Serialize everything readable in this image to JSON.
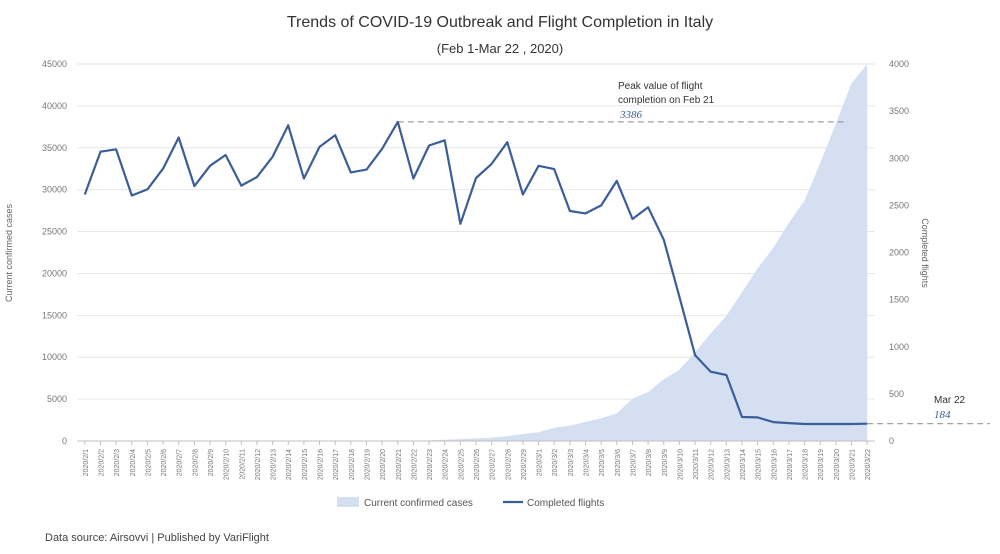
{
  "chart_data": {
    "type": "area+line",
    "title": "Trends of COVID-19 Outbreak and Flight Completion in Italy",
    "subtitle": "(Feb 1-Mar 22 , 2020)",
    "ylabel_left": "Current confirmed cases",
    "ylabel_right": "Completed flights",
    "ylim_left": [
      0,
      45000
    ],
    "ylim_right": [
      0,
      4000
    ],
    "yticks_left": [
      "0",
      "5000",
      "10000",
      "15000",
      "20000",
      "25000",
      "30000",
      "35000",
      "40000",
      "45000"
    ],
    "yticks_right": [
      "0",
      "500",
      "1000",
      "1500",
      "2000",
      "2500",
      "3000",
      "3500",
      "4000"
    ],
    "grid": "horizontal",
    "legend_position": "bottom",
    "categories": [
      "2020/2/1",
      "2020/2/2",
      "2020/2/3",
      "2020/2/4",
      "2020/2/5",
      "2020/2/6",
      "2020/2/7",
      "2020/2/8",
      "2020/2/9",
      "2020/2/10",
      "2020/2/11",
      "2020/2/12",
      "2020/2/13",
      "2020/2/14",
      "2020/2/15",
      "2020/2/16",
      "2020/2/17",
      "2020/2/18",
      "2020/2/19",
      "2020/2/20",
      "2020/2/21",
      "2020/2/22",
      "2020/2/23",
      "2020/2/24",
      "2020/2/25",
      "2020/2/26",
      "2020/2/27",
      "2020/2/28",
      "2020/2/29",
      "2020/3/1",
      "2020/3/2",
      "2020/3/3",
      "2020/3/4",
      "2020/3/5",
      "2020/3/6",
      "2020/3/7",
      "2020/3/8",
      "2020/3/9",
      "2020/3/10",
      "2020/3/11",
      "2020/3/12",
      "2020/3/13",
      "2020/3/14",
      "2020/3/15",
      "2020/3/16",
      "2020/3/17",
      "2020/3/18",
      "2020/3/19",
      "2020/3/20",
      "2020/3/21",
      "2020/3/22"
    ],
    "series": [
      {
        "name": "Current confirmed cases",
        "type": "area",
        "axis": "left",
        "color": "#d5dff2",
        "values": [
          2,
          2,
          2,
          2,
          2,
          2,
          3,
          3,
          3,
          3,
          3,
          3,
          3,
          3,
          3,
          3,
          3,
          3,
          3,
          3,
          3,
          17,
          76,
          150,
          221,
          311,
          385,
          588,
          821,
          1049,
          1577,
          1835,
          2263,
          2706,
          3296,
          5061,
          5838,
          7375,
          8514,
          10590,
          12839,
          14955,
          17750,
          20603,
          23073,
          26062,
          28710,
          33190,
          37860,
          42681,
          46638
        ]
      },
      {
        "name": "Completed flights",
        "type": "line",
        "axis": "right",
        "color": "#3b5e99",
        "values": [
          2615,
          3070,
          3095,
          2605,
          2670,
          2890,
          3220,
          2705,
          2920,
          3035,
          2710,
          2800,
          3015,
          3350,
          2785,
          3120,
          3245,
          2850,
          2880,
          3100,
          3386,
          2785,
          3135,
          3190,
          2305,
          2790,
          2940,
          3170,
          2615,
          2920,
          2885,
          2440,
          2415,
          2500,
          2760,
          2355,
          2480,
          2135,
          1530,
          910,
          735,
          700,
          255,
          250,
          200,
          190,
          180,
          180,
          180,
          180,
          184
        ]
      }
    ],
    "annotations": [
      {
        "lines": [
          "Peak value of flight",
          "completion on Feb 21"
        ],
        "value": "3386",
        "category": "2020/2/21"
      },
      {
        "lines": [
          "Mar 22"
        ],
        "value": "184",
        "category": "2020/3/22"
      }
    ]
  },
  "legend": {
    "cases_label": "Current confirmed cases",
    "flights_label": "Completed flights"
  },
  "footer": {
    "source": "Data source: Airsovvi  |  Published by VariFlight"
  }
}
